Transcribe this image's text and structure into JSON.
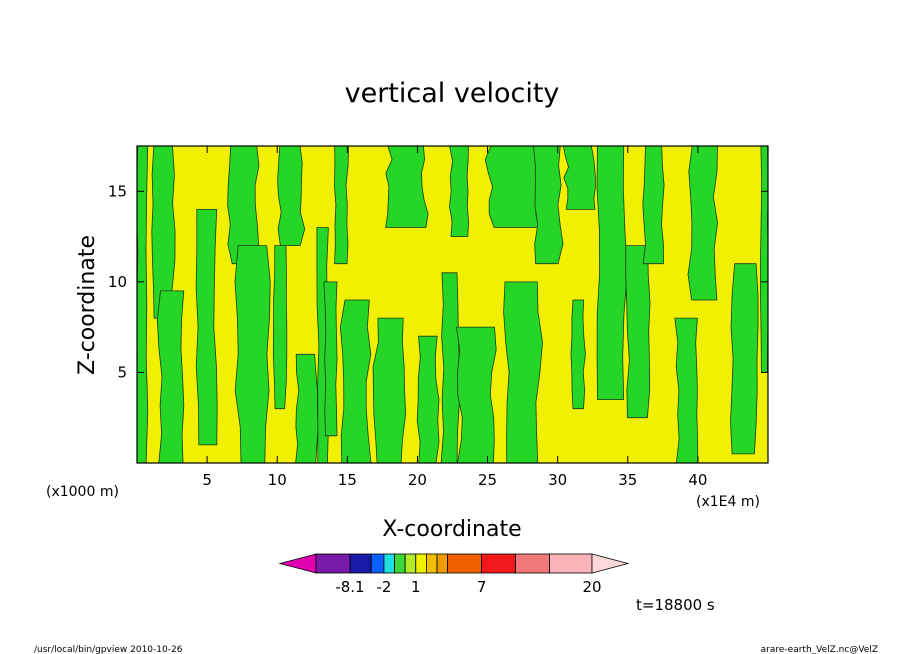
{
  "chart_data": {
    "type": "heatmap",
    "title": "vertical velocity",
    "xlabel": "X-coordinate",
    "ylabel": "Z-coordinate",
    "x_unit_left": "(x1000 m)",
    "x_unit_right": "(x1E4 m)",
    "xlim": [
      0,
      45
    ],
    "ylim": [
      0,
      17.5
    ],
    "x_ticks": [
      "5",
      "10",
      "15",
      "20",
      "25",
      "30",
      "35",
      "40"
    ],
    "y_ticks": [
      "5",
      "10",
      "15"
    ],
    "time_label": "t=18800 s",
    "colorbar": {
      "tick_labels": [
        "-8.1",
        "-2",
        "1",
        "7",
        "20"
      ],
      "colors": [
        "#e000b0",
        "#7a1aa8",
        "#1a1aa8",
        "#0a5fff",
        "#1ee0e0",
        "#3ad63a",
        "#b0ec2a",
        "#f0f000",
        "#f0c000",
        "#f09a00",
        "#f06000",
        "#f01818",
        "#f07878",
        "#f8b4b8",
        "#fcd8d8"
      ]
    },
    "fields": {
      "positive_color": "#f0f000",
      "negative_color": "#26d626"
    }
  },
  "footer": {
    "left": "/usr/local/bin/gpview   2010-10-26",
    "right": "arare-earth_VelZ.nc@VelZ"
  }
}
